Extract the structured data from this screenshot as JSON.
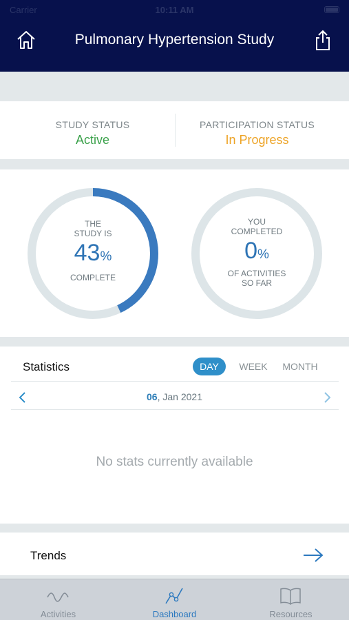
{
  "statusbar": {
    "carrier": "Carrier",
    "time": "10:11 AM"
  },
  "header": {
    "title": "Pulmonary Hypertension Study",
    "home_icon": "home-icon",
    "share_icon": "share-icon"
  },
  "study_status": {
    "label": "STUDY STATUS",
    "value": "Active",
    "value_color": "#3aa14a"
  },
  "participation_status": {
    "label": "PARTICIPATION STATUS",
    "value": "In Progress",
    "value_color": "#eda325"
  },
  "study_progress": {
    "line1": "THE",
    "line2": "STUDY IS",
    "percent": "43",
    "unit": "%",
    "caption": "COMPLETE",
    "fraction": 0.43
  },
  "activity_progress": {
    "line1": "YOU",
    "line2": "COMPLETED",
    "percent": "0",
    "unit": "%",
    "caption1": "OF ACTIVITIES",
    "caption2": "SO FAR",
    "fraction": 0.0
  },
  "statistics": {
    "title": "Statistics",
    "tabs": [
      {
        "label": "DAY",
        "active": true
      },
      {
        "label": "WEEK",
        "active": false
      },
      {
        "label": "MONTH",
        "active": false
      }
    ],
    "date_day": "06",
    "date_rest": ", Jan 2021",
    "empty_message": "No stats currently available"
  },
  "trends": {
    "title": "Trends"
  },
  "tabbar": {
    "items": [
      {
        "label": "Activities",
        "icon": "activities-wave-icon",
        "active": false
      },
      {
        "label": "Dashboard",
        "icon": "dashboard-graph-icon",
        "active": true
      },
      {
        "label": "Resources",
        "icon": "book-icon",
        "active": false
      }
    ]
  },
  "colors": {
    "nav_bg": "#07114c",
    "accent": "#2e74b5",
    "ring_track": "#dde5e8",
    "tab_active": "#2c79bf"
  }
}
